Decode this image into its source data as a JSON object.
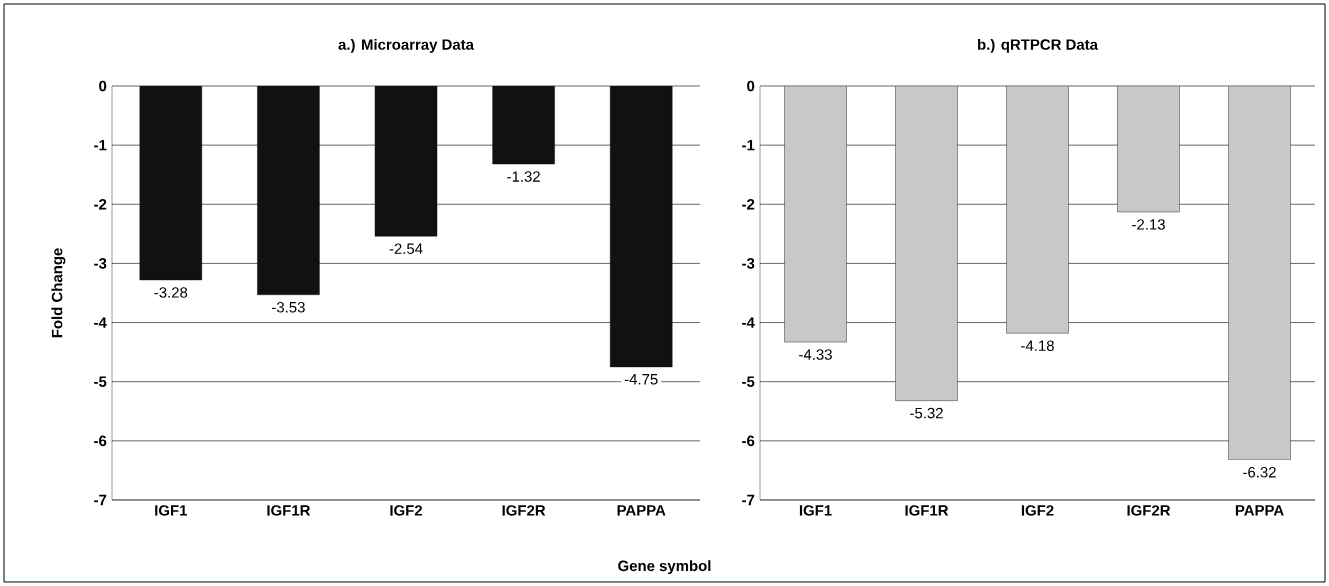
{
  "chart_data": [
    {
      "type": "bar",
      "title": "a.) Microarray Data",
      "xlabel": "Gene symbol",
      "ylabel": "Fold Change",
      "categories": [
        "IGF1",
        "IGF1R",
        "IGF2",
        "IGF2R",
        "PAPPA"
      ],
      "values": [
        -3.28,
        -3.53,
        -2.54,
        -1.32,
        -4.75
      ],
      "color": "#111111",
      "ylim": [
        -7,
        0
      ],
      "yticks": [
        -7,
        -6,
        -5,
        -4,
        -3,
        -2,
        -1,
        0
      ],
      "grid": "y",
      "data_labels": true
    },
    {
      "type": "bar",
      "title": "b.) qRTPCR Data",
      "categories": [
        "IGF1",
        "IGF1R",
        "IGF2",
        "IGF2R",
        "PAPPA"
      ],
      "values": [
        -4.33,
        -5.32,
        -4.18,
        -2.13,
        -6.32
      ],
      "color": "#c8c8c8",
      "ylim": [
        -7,
        0
      ],
      "yticks": [
        -7,
        -6,
        -5,
        -4,
        -3,
        -2,
        -1,
        0
      ],
      "grid": "y",
      "data_labels": true
    }
  ]
}
